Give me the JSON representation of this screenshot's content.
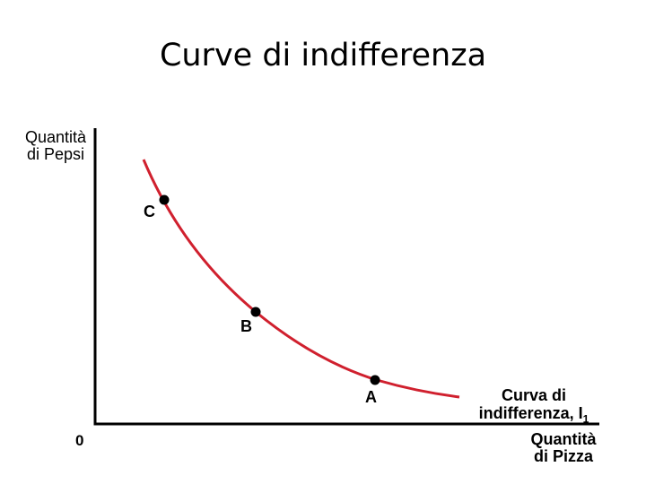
{
  "title": "Curve di indifferenza",
  "y_axis": {
    "line1": "Quantità",
    "line2": "di Pepsi"
  },
  "x_axis": {
    "line1": "Quantità",
    "line2": "di Pizza"
  },
  "origin_label": "0",
  "curve": {
    "label_line1": "Curva di",
    "label_line2": "indifferenza, I",
    "label_sub": "1",
    "color": "#d0202e"
  },
  "points": [
    {
      "label": "C"
    },
    {
      "label": "B"
    },
    {
      "label": "A"
    }
  ],
  "colors": {
    "axis": "#000000",
    "point": "#000000"
  }
}
